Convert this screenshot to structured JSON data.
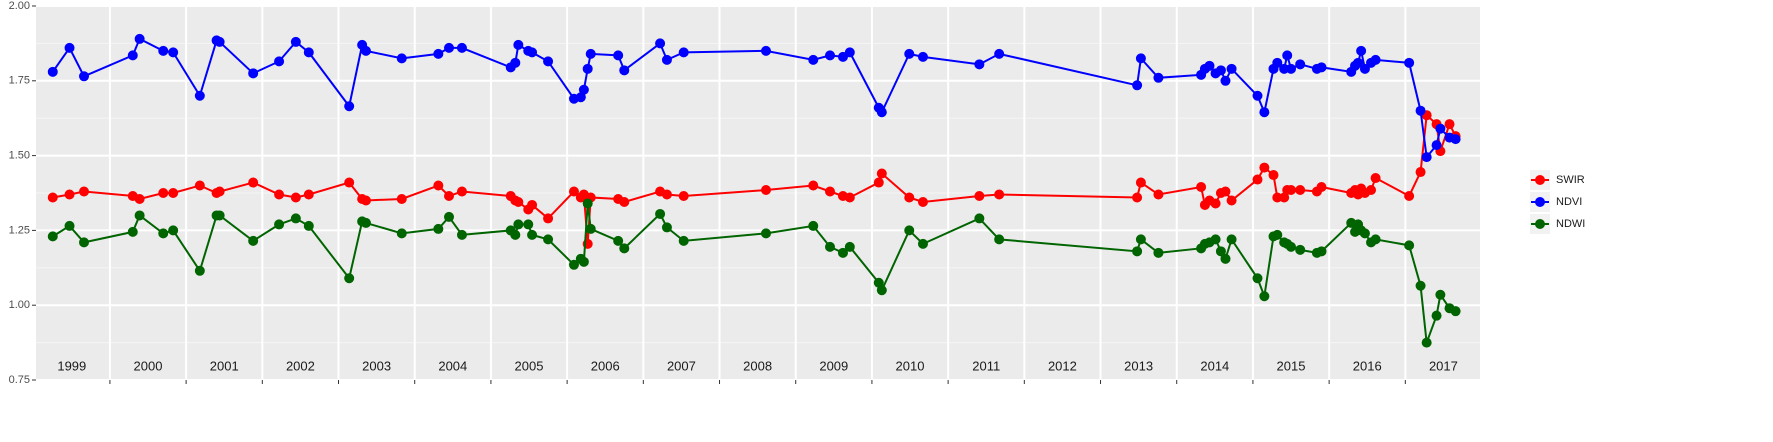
{
  "chart_data": {
    "type": "line",
    "x": [
      1999.25,
      1999.47,
      1999.66,
      2000.3,
      2000.39,
      2000.7,
      2000.83,
      2001.18,
      2001.4,
      2001.44,
      2001.88,
      2002.22,
      2002.44,
      2002.61,
      2003.14,
      2003.31,
      2003.36,
      2003.83,
      2004.31,
      2004.45,
      2004.62,
      2005.26,
      2005.32,
      2005.36,
      2005.49,
      2005.54,
      2005.75,
      2006.09,
      2006.18,
      2006.22,
      2006.27,
      2006.31,
      2006.67,
      2006.75,
      2007.22,
      2007.31,
      2007.53,
      2008.61,
      2009.23,
      2009.45,
      2009.62,
      2009.71,
      2010.09,
      2010.13,
      2010.49,
      2010.67,
      2011.41,
      2011.67,
      2013.48,
      2013.53,
      2013.76,
      2014.32,
      2014.37,
      2014.43,
      2014.51,
      2014.58,
      2014.64,
      2014.72,
      2015.06,
      2015.15,
      2015.27,
      2015.32,
      2015.41,
      2015.45,
      2015.5,
      2015.62,
      2015.84,
      2015.9,
      2016.29,
      2016.34,
      2016.38,
      2016.42,
      2016.47,
      2016.55,
      2016.61,
      2017.05,
      2017.2,
      2017.28,
      2017.41,
      2017.46,
      2017.58,
      2017.66
    ],
    "series": [
      {
        "name": "SWIR",
        "color": "#ff0000",
        "values": [
          1.36,
          1.37,
          1.38,
          1.365,
          1.355,
          1.375,
          1.375,
          1.4,
          1.375,
          1.38,
          1.41,
          1.37,
          1.36,
          1.37,
          1.41,
          1.355,
          1.35,
          1.355,
          1.4,
          1.365,
          1.38,
          1.365,
          1.35,
          1.345,
          1.32,
          1.335,
          1.29,
          1.38,
          1.36,
          1.37,
          1.205,
          1.36,
          1.355,
          1.345,
          1.38,
          1.37,
          1.365,
          1.385,
          1.4,
          1.38,
          1.365,
          1.36,
          1.41,
          1.44,
          1.36,
          1.345,
          1.365,
          1.37,
          1.36,
          1.41,
          1.37,
          1.395,
          1.335,
          1.35,
          1.34,
          1.375,
          1.38,
          1.35,
          1.42,
          1.46,
          1.435,
          1.36,
          1.36,
          1.385,
          1.385,
          1.385,
          1.38,
          1.395,
          1.375,
          1.385,
          1.37,
          1.39,
          1.375,
          1.385,
          1.425,
          1.365,
          1.445,
          1.635,
          1.605,
          1.515,
          1.605,
          1.565
        ]
      },
      {
        "name": "NDVI",
        "color": "#0000ff",
        "values": [
          1.78,
          1.86,
          1.765,
          1.835,
          1.89,
          1.85,
          1.845,
          1.7,
          1.885,
          1.88,
          1.775,
          1.815,
          1.88,
          1.845,
          1.665,
          1.87,
          1.85,
          1.825,
          1.84,
          1.86,
          1.86,
          1.795,
          1.81,
          1.87,
          1.85,
          1.845,
          1.815,
          1.69,
          1.695,
          1.72,
          1.79,
          1.84,
          1.835,
          1.785,
          1.875,
          1.82,
          1.845,
          1.85,
          1.82,
          1.835,
          1.83,
          1.845,
          1.66,
          1.645,
          1.84,
          1.83,
          1.805,
          1.84,
          1.735,
          1.825,
          1.76,
          1.77,
          1.79,
          1.8,
          1.775,
          1.785,
          1.75,
          1.79,
          1.7,
          1.645,
          1.79,
          1.81,
          1.79,
          1.835,
          1.79,
          1.805,
          1.79,
          1.795,
          1.78,
          1.8,
          1.81,
          1.85,
          1.79,
          1.81,
          1.82,
          1.81,
          1.65,
          1.495,
          1.535,
          1.59,
          1.56,
          1.555
        ]
      },
      {
        "name": "NDWI",
        "color": "#006400",
        "values": [
          1.23,
          1.265,
          1.21,
          1.245,
          1.3,
          1.24,
          1.25,
          1.115,
          1.3,
          1.3,
          1.215,
          1.27,
          1.29,
          1.265,
          1.09,
          1.28,
          1.275,
          1.24,
          1.255,
          1.295,
          1.235,
          1.25,
          1.235,
          1.27,
          1.27,
          1.235,
          1.22,
          1.135,
          1.155,
          1.145,
          1.34,
          1.255,
          1.215,
          1.19,
          1.305,
          1.26,
          1.215,
          1.24,
          1.265,
          1.195,
          1.175,
          1.195,
          1.075,
          1.05,
          1.25,
          1.205,
          1.29,
          1.22,
          1.18,
          1.22,
          1.175,
          1.19,
          1.205,
          1.21,
          1.22,
          1.18,
          1.155,
          1.22,
          1.09,
          1.03,
          1.23,
          1.235,
          1.21,
          1.205,
          1.195,
          1.185,
          1.175,
          1.18,
          1.275,
          1.245,
          1.27,
          1.25,
          1.24,
          1.21,
          1.22,
          1.2,
          1.065,
          0.875,
          0.965,
          1.035,
          0.99,
          0.98
        ]
      }
    ],
    "xlim": [
      1999.03,
      2017.98
    ],
    "ylim": [
      0.75,
      2.0
    ],
    "yticks": [
      {
        "value": 0.75,
        "label": "0.75"
      },
      {
        "value": 1.0,
        "label": "1.00"
      },
      {
        "value": 1.25,
        "label": "1.25"
      },
      {
        "value": 1.5,
        "label": "1.50"
      },
      {
        "value": 1.75,
        "label": "1.75"
      },
      {
        "value": 2.0,
        "label": "2.00"
      }
    ],
    "x_grid": [
      2000,
      2001,
      2002,
      2003,
      2004,
      2005,
      2006,
      2007,
      2008,
      2009,
      2010,
      2011,
      2012,
      2013,
      2014,
      2015,
      2016,
      2017
    ],
    "xticks": [
      {
        "value": 1999.5,
        "label": "1999"
      },
      {
        "value": 2000.5,
        "label": "2000"
      },
      {
        "value": 2001.5,
        "label": "2001"
      },
      {
        "value": 2002.5,
        "label": "2002"
      },
      {
        "value": 2003.5,
        "label": "2003"
      },
      {
        "value": 2004.5,
        "label": "2004"
      },
      {
        "value": 2005.5,
        "label": "2005"
      },
      {
        "value": 2006.5,
        "label": "2006"
      },
      {
        "value": 2007.5,
        "label": "2007"
      },
      {
        "value": 2008.5,
        "label": "2008"
      },
      {
        "value": 2009.5,
        "label": "2009"
      },
      {
        "value": 2010.5,
        "label": "2010"
      },
      {
        "value": 2011.5,
        "label": "2011"
      },
      {
        "value": 2012.5,
        "label": "2012"
      },
      {
        "value": 2013.5,
        "label": "2013"
      },
      {
        "value": 2014.5,
        "label": "2014"
      },
      {
        "value": 2015.5,
        "label": "2015"
      },
      {
        "value": 2016.5,
        "label": "2016"
      },
      {
        "value": 2017.5,
        "label": "2017"
      }
    ],
    "grid": true,
    "legend": "right"
  }
}
